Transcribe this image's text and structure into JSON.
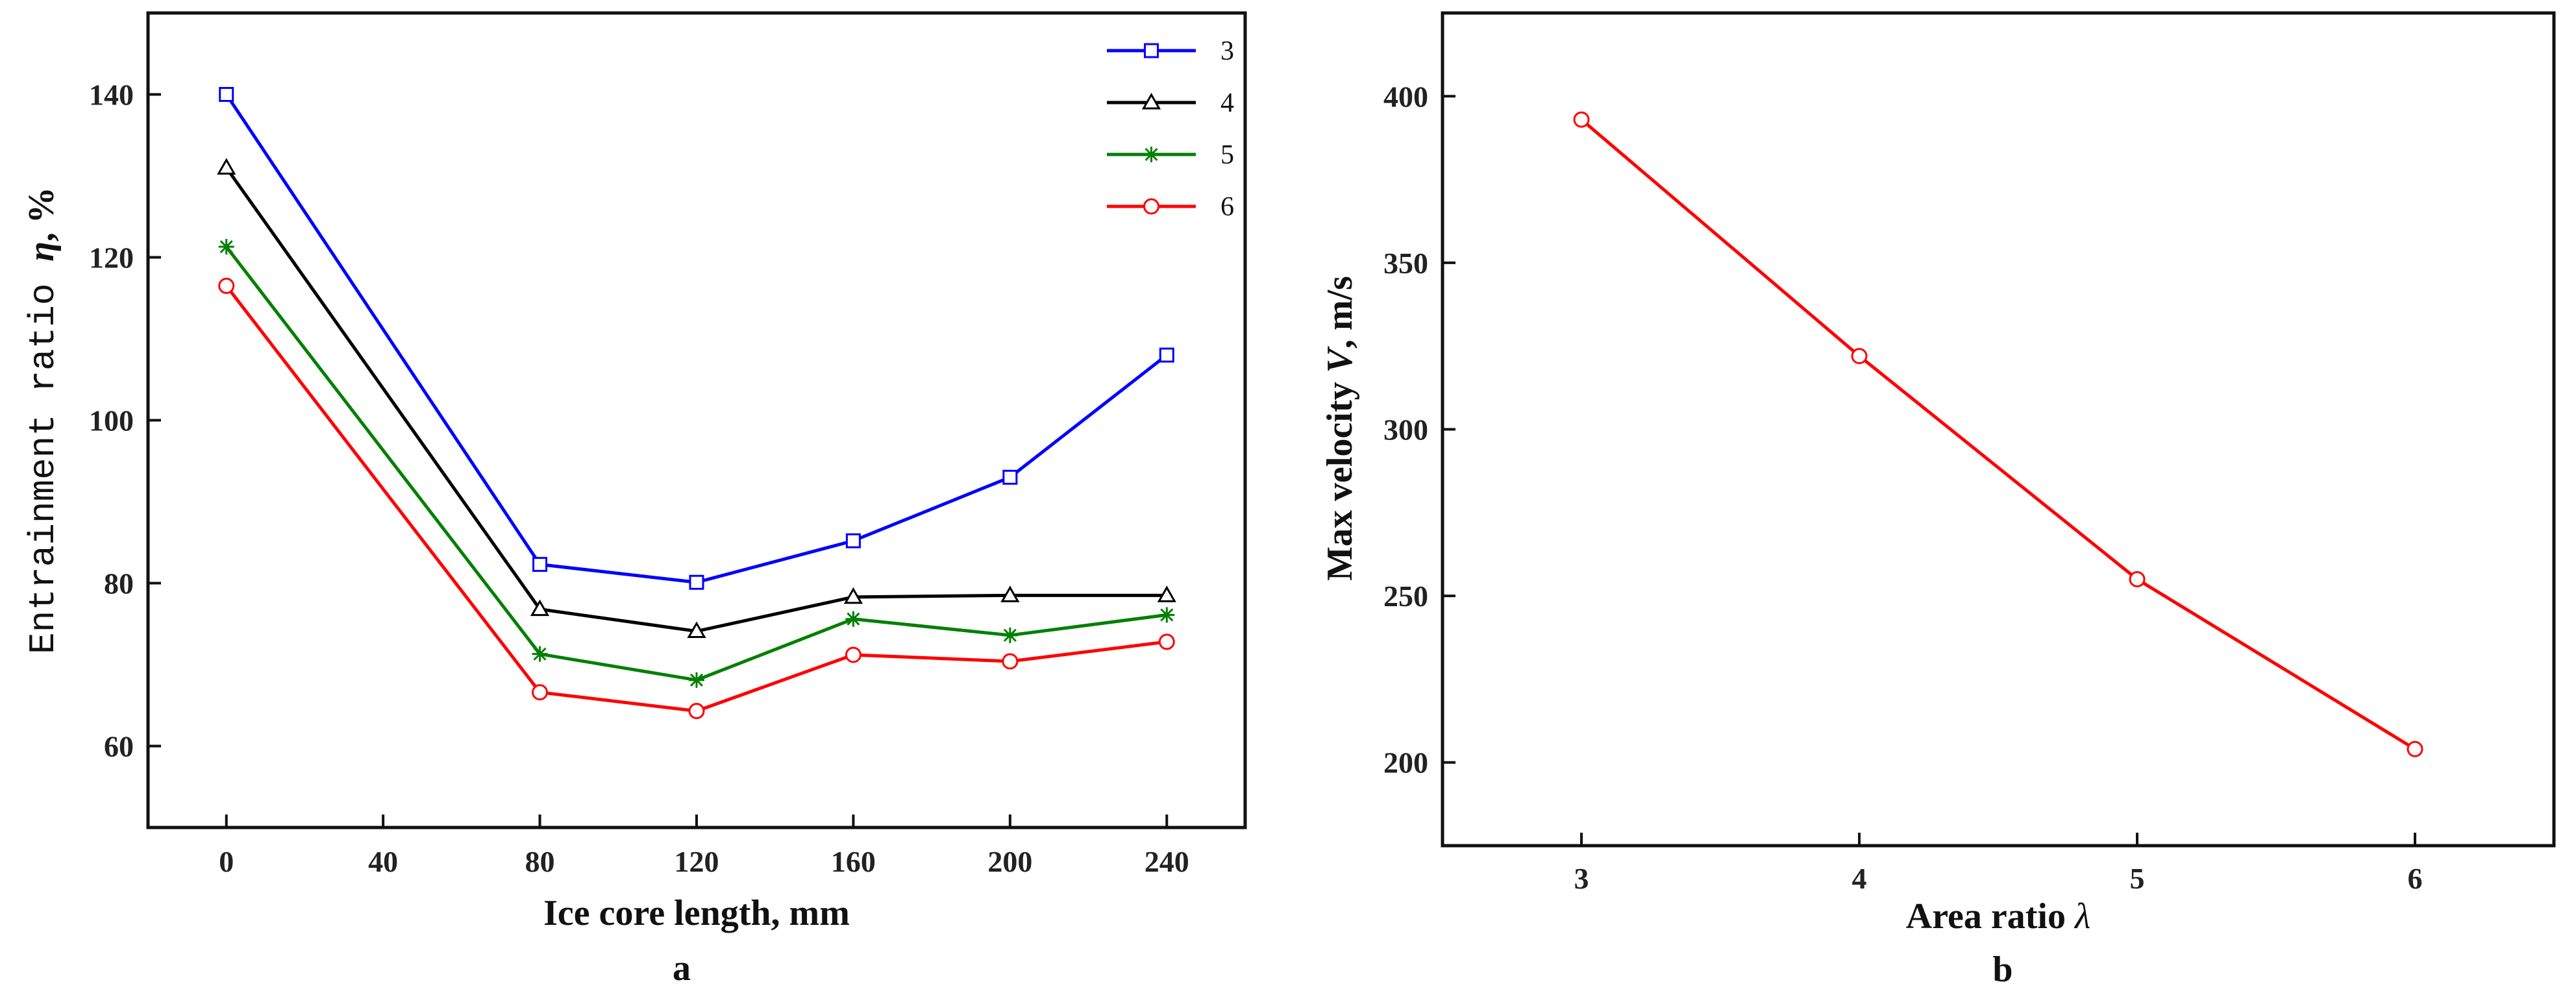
{
  "chart_data": [
    {
      "type": "line",
      "panel_label": "a",
      "xlabel": "Ice core length, mm",
      "ylabel_parts": [
        "Entrainment ratio ",
        "η",
        ", %"
      ],
      "x": [
        0,
        80,
        120,
        160,
        200,
        240
      ],
      "xticks": [
        0,
        40,
        80,
        120,
        160,
        200,
        240
      ],
      "yticks": [
        60,
        80,
        100,
        120,
        140
      ],
      "xlim": [
        -20,
        260
      ],
      "ylim": [
        50,
        150
      ],
      "legend_position": "top-right",
      "series": [
        {
          "name": "3",
          "color": "#0000ff",
          "marker": "square",
          "values": [
            140.0,
            82.3,
            80.1,
            85.2,
            93.0,
            108.0
          ]
        },
        {
          "name": "4",
          "color": "#000000",
          "marker": "triangle",
          "values": [
            131.0,
            76.8,
            74.1,
            78.3,
            78.5,
            78.5
          ]
        },
        {
          "name": "5",
          "color": "#008000",
          "marker": "star",
          "values": [
            121.3,
            71.3,
            68.1,
            75.6,
            73.6,
            76.1
          ]
        },
        {
          "name": "6",
          "color": "#ff0000",
          "marker": "circle",
          "values": [
            116.5,
            66.6,
            64.3,
            71.2,
            70.4,
            72.8
          ]
        }
      ]
    },
    {
      "type": "line",
      "panel_label": "b",
      "xlabel_parts": [
        "Area ratio ",
        "λ"
      ],
      "ylabel_parts": [
        "Max velocity ",
        "V",
        ", m/s"
      ],
      "x": [
        3,
        4,
        5,
        6
      ],
      "xticks": [
        3,
        4,
        5,
        6
      ],
      "yticks": [
        200,
        250,
        300,
        350,
        400
      ],
      "xlim": [
        2.5,
        6.5
      ],
      "ylim": [
        175,
        425
      ],
      "series": [
        {
          "name": "Max velocity",
          "color": "#ff0000",
          "marker": "circle",
          "values": [
            393,
            322,
            255,
            204
          ]
        }
      ]
    }
  ]
}
